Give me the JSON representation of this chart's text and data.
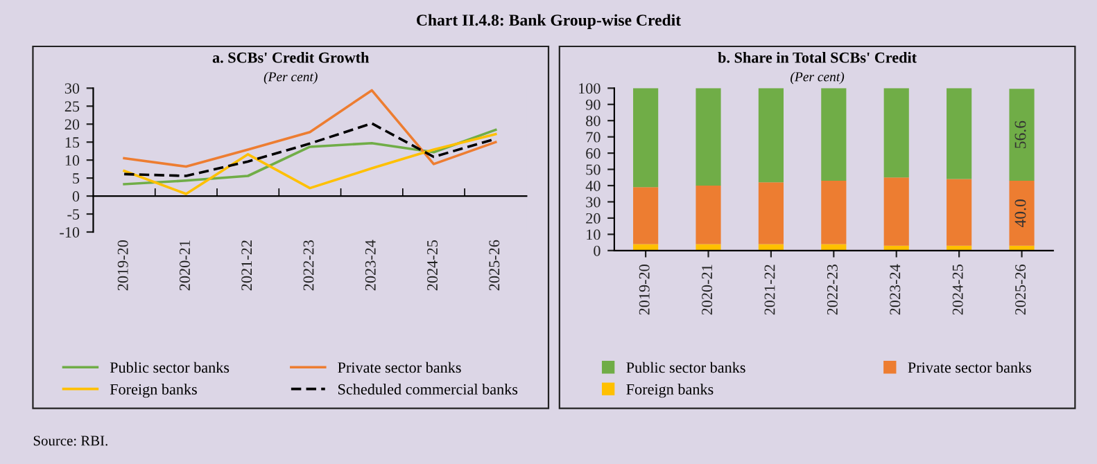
{
  "chart_data": [
    {
      "type": "line",
      "title": "a. SCBs' Credit Growth",
      "subtitle": "(Per cent)",
      "annotations": [
        "Chart II.4.8: Bank Group-wise Credit"
      ],
      "categories": [
        "2019-20",
        "2020-21",
        "2021-22",
        "2022-23",
        "2023-24",
        "2024-25",
        "2025-26"
      ],
      "series": [
        {
          "name": "Public sector banks",
          "color": "#70ad47",
          "values": [
            3.3,
            4.3,
            5.6,
            13.7,
            14.7,
            12.2,
            18.4
          ]
        },
        {
          "name": "Private sector banks",
          "color": "#ed7d31",
          "values": [
            10.5,
            8.2,
            12.9,
            17.8,
            29.4,
            8.9,
            15.0
          ]
        },
        {
          "name": "Foreign banks",
          "color": "#ffc000",
          "values": [
            7.0,
            0.6,
            11.6,
            2.2,
            7.7,
            12.9,
            17.2
          ]
        },
        {
          "name": "Scheduled commercial banks",
          "color": "#000000",
          "line_style": "dashed",
          "values": [
            6.1,
            5.6,
            9.6,
            14.6,
            20.2,
            10.9,
            15.9
          ]
        }
      ],
      "ylim": [
        -10,
        30
      ],
      "yticks": [
        -10,
        -5,
        0,
        5,
        10,
        15,
        20,
        25,
        30
      ],
      "legend": "bottom",
      "marker": "none",
      "line_style": "solid"
    },
    {
      "type": "bar",
      "stacked": true,
      "title": "b. Share in Total SCBs' Credit",
      "subtitle": "(Per cent)",
      "annotations": [
        "Source: RBI."
      ],
      "categories": [
        "2019-20",
        "2020-21",
        "2021-22",
        "2022-23",
        "2023-24",
        "2024-25",
        "2025-26"
      ],
      "series": [
        {
          "name": "Foreign banks",
          "color": "#ffc000",
          "values": [
            4,
            4,
            4,
            4,
            3,
            3,
            3
          ]
        },
        {
          "name": "Private sector banks",
          "color": "#ed7d31",
          "values": [
            35,
            36,
            38,
            39,
            42,
            41,
            40.0
          ],
          "value_labels": [
            null,
            null,
            null,
            null,
            null,
            null,
            "40.0"
          ]
        },
        {
          "name": "Public sector banks",
          "color": "#70ad47",
          "values": [
            61,
            60,
            58,
            57,
            55,
            56,
            56.6
          ],
          "value_labels": [
            null,
            null,
            null,
            null,
            null,
            null,
            "56.6"
          ]
        }
      ],
      "ylim": [
        0,
        100
      ],
      "yticks": [
        0,
        10,
        20,
        30,
        40,
        50,
        60,
        70,
        80,
        90,
        100
      ],
      "legend": "bottom"
    }
  ]
}
